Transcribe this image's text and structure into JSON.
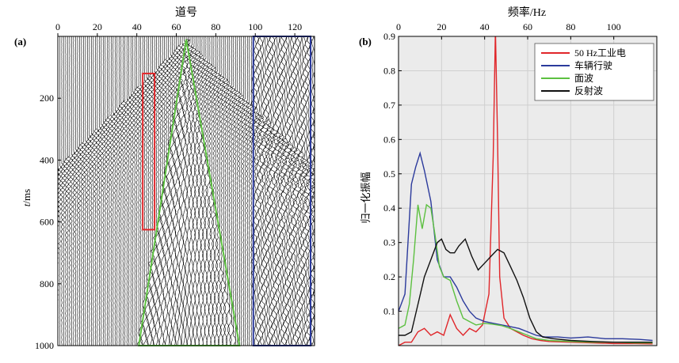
{
  "chart_data": [
    {
      "type": "heatmap",
      "panel_label": "(a)",
      "title": "",
      "xlabel": "道号",
      "ylabel_italic": "t",
      "ylabel_unit": "/ms",
      "xlim": [
        0,
        130
      ],
      "ylim": [
        0,
        1000
      ],
      "x_ticks": [
        0,
        20,
        40,
        60,
        80,
        100,
        120
      ],
      "y_ticks": [
        200,
        400,
        600,
        800,
        1000
      ],
      "source_trace": 65,
      "boxes": [
        {
          "name": "50 Hz power-line trace zone",
          "color": "#e0262a",
          "x": [
            43,
            49
          ],
          "t": [
            120,
            625
          ]
        },
        {
          "name": "vehicle-noise zone",
          "color": "#2b3a9c",
          "x": [
            99,
            128
          ],
          "t": [
            0,
            1000
          ]
        }
      ],
      "surface_wave_triangle": {
        "color": "#5cc040",
        "apex": [
          65,
          10
        ],
        "base_left": [
          41,
          1000
        ],
        "base_right": [
          92,
          1000
        ]
      }
    },
    {
      "type": "line",
      "panel_label": "(b)",
      "title": "频率/Hz",
      "xlabel": "频率/Hz",
      "ylabel": "归一化振幅",
      "xlim": [
        0,
        120
      ],
      "ylim": [
        0,
        0.9
      ],
      "x_ticks": [
        0,
        20,
        40,
        60,
        80,
        100
      ],
      "y_ticks": [
        0.1,
        0.2,
        0.3,
        0.4,
        0.5,
        0.6,
        0.7,
        0.8,
        0.9
      ],
      "grid": true,
      "legend_position": "top-right",
      "series": [
        {
          "name": "50 Hz工业电",
          "color": "#e0262a",
          "x": [
            0,
            3,
            6,
            9,
            12,
            15,
            18,
            21,
            24,
            27,
            30,
            33,
            36,
            39,
            42,
            44,
            45,
            46,
            47,
            49,
            52,
            55,
            58,
            62,
            66,
            70,
            80,
            90,
            100,
            110,
            118
          ],
          "y": [
            0.0,
            0.01,
            0.01,
            0.04,
            0.05,
            0.03,
            0.04,
            0.03,
            0.09,
            0.05,
            0.03,
            0.05,
            0.04,
            0.06,
            0.15,
            0.55,
            0.92,
            0.6,
            0.2,
            0.08,
            0.05,
            0.04,
            0.03,
            0.02,
            0.015,
            0.012,
            0.01,
            0.008,
            0.006,
            0.006,
            0.005
          ]
        },
        {
          "name": "车辆行驶",
          "color": "#2b3a9c",
          "x": [
            0,
            3,
            6,
            8,
            10,
            12,
            15,
            18,
            21,
            24,
            27,
            30,
            33,
            36,
            40,
            44,
            48,
            52,
            56,
            60,
            64,
            68,
            74,
            80,
            88,
            96,
            104,
            112,
            118
          ],
          "y": [
            0.1,
            0.15,
            0.47,
            0.52,
            0.56,
            0.51,
            0.42,
            0.25,
            0.2,
            0.2,
            0.17,
            0.13,
            0.1,
            0.08,
            0.07,
            0.065,
            0.06,
            0.055,
            0.05,
            0.04,
            0.03,
            0.025,
            0.025,
            0.022,
            0.025,
            0.02,
            0.02,
            0.018,
            0.015
          ]
        },
        {
          "name": "面波",
          "color": "#5cc040",
          "x": [
            0,
            3,
            5,
            7,
            9,
            11,
            13,
            15,
            17,
            19,
            21,
            24,
            27,
            30,
            33,
            36,
            40,
            44,
            48,
            52,
            56,
            60,
            64,
            70,
            80,
            90,
            100,
            110,
            118
          ],
          "y": [
            0.05,
            0.06,
            0.12,
            0.25,
            0.41,
            0.34,
            0.41,
            0.4,
            0.32,
            0.23,
            0.2,
            0.19,
            0.13,
            0.08,
            0.07,
            0.06,
            0.065,
            0.062,
            0.058,
            0.05,
            0.04,
            0.03,
            0.02,
            0.015,
            0.012,
            0.01,
            0.01,
            0.008,
            0.008
          ]
        },
        {
          "name": "反射波",
          "color": "#111111",
          "x": [
            0,
            3,
            6,
            9,
            12,
            15,
            18,
            20,
            22,
            24,
            26,
            28,
            31,
            34,
            37,
            40,
            43,
            46,
            49,
            52,
            55,
            58,
            61,
            64,
            67,
            72,
            80,
            90,
            100,
            110,
            118
          ],
          "y": [
            0.03,
            0.03,
            0.04,
            0.12,
            0.2,
            0.25,
            0.3,
            0.31,
            0.28,
            0.27,
            0.27,
            0.29,
            0.31,
            0.26,
            0.22,
            0.24,
            0.26,
            0.28,
            0.27,
            0.23,
            0.19,
            0.14,
            0.08,
            0.04,
            0.025,
            0.02,
            0.015,
            0.012,
            0.01,
            0.01,
            0.01
          ]
        }
      ]
    }
  ]
}
